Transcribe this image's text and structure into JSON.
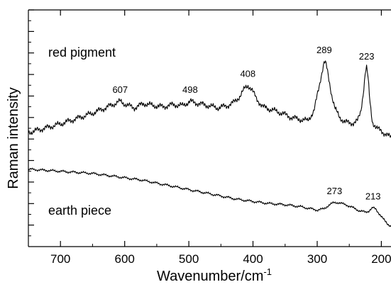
{
  "chart_data": {
    "type": "line",
    "xlabel": "Wavenumber/cm",
    "xlabel_superscript": "-1",
    "ylabel": "Raman intensity",
    "x_axis_reversed": true,
    "xlim": [
      750,
      185
    ],
    "ylim": [
      0,
      11
    ],
    "grid": false,
    "x_ticks": [
      700,
      600,
      500,
      400,
      300,
      200
    ],
    "x_tick_labels": [
      "700",
      "600",
      "500",
      "400",
      "300",
      "200"
    ],
    "y_ticks_unlabeled": [
      1,
      2,
      3,
      4,
      5,
      6,
      7,
      8,
      9,
      10,
      11
    ],
    "series": [
      {
        "label": "red pigment",
        "color": "#000000",
        "x": [
          750,
          725,
          700,
          675,
          650,
          630,
          615,
          607,
          598,
          585,
          570,
          555,
          540,
          525,
          510,
          498,
          485,
          470,
          455,
          440,
          430,
          420,
          413,
          408,
          402,
          395,
          385,
          370,
          355,
          340,
          325,
          315,
          305,
          298,
          292,
          289,
          286,
          282,
          277,
          272,
          265,
          257,
          250,
          243,
          237,
          232,
          228,
          225,
          223,
          221,
          218,
          214,
          208,
          200,
          195,
          190,
          185
        ],
        "y": [
          5.3,
          5.5,
          5.7,
          5.95,
          6.2,
          6.45,
          6.65,
          6.75,
          6.6,
          6.45,
          6.65,
          6.55,
          6.5,
          6.6,
          6.55,
          6.75,
          6.65,
          6.55,
          6.45,
          6.55,
          6.7,
          7.0,
          7.35,
          7.5,
          7.3,
          6.9,
          6.5,
          6.35,
          6.2,
          6.0,
          5.9,
          5.85,
          6.3,
          7.3,
          8.2,
          8.6,
          8.45,
          7.8,
          7.0,
          6.4,
          6.0,
          5.8,
          5.75,
          5.75,
          5.85,
          6.3,
          7.2,
          8.1,
          8.3,
          7.9,
          6.8,
          5.8,
          5.5,
          5.4,
          5.25,
          5.15,
          5.1
        ]
      },
      {
        "label": "earth piece",
        "color": "#000000",
        "x": [
          750,
          725,
          700,
          675,
          650,
          625,
          600,
          575,
          550,
          525,
          500,
          475,
          450,
          425,
          400,
          375,
          350,
          325,
          300,
          290,
          283,
          277,
          273,
          268,
          262,
          255,
          248,
          240,
          233,
          225,
          220,
          216,
          213,
          209,
          205,
          200,
          195,
          190,
          185
        ],
        "y": [
          3.6,
          3.55,
          3.5,
          3.45,
          3.4,
          3.3,
          3.2,
          3.1,
          2.95,
          2.8,
          2.65,
          2.5,
          2.35,
          2.2,
          2.1,
          2.0,
          1.95,
          1.85,
          1.7,
          1.75,
          1.9,
          2.0,
          2.05,
          2.05,
          2.0,
          1.95,
          1.85,
          1.75,
          1.65,
          1.6,
          1.65,
          1.75,
          1.8,
          1.75,
          1.6,
          1.4,
          1.2,
          1.05,
          0.95
        ]
      }
    ],
    "peak_labels": [
      {
        "text": "607",
        "x": 607,
        "y": 6.75
      },
      {
        "text": "498",
        "x": 498,
        "y": 6.75
      },
      {
        "text": "408",
        "x": 408,
        "y": 7.5
      },
      {
        "text": "289",
        "x": 289,
        "y": 8.6
      },
      {
        "text": "223",
        "x": 223,
        "y": 8.3
      },
      {
        "text": "273",
        "x": 273,
        "y": 2.05
      },
      {
        "text": "213",
        "x": 213,
        "y": 1.8
      }
    ]
  }
}
